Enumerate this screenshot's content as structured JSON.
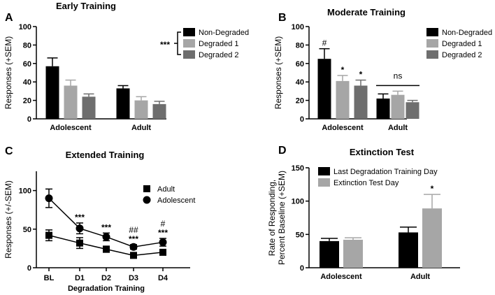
{
  "chart_data": [
    {
      "panel": "A",
      "type": "bar",
      "title": "Early Training",
      "ylabel": "Responses (+SEM)",
      "xlabel": "",
      "ylim": [
        0,
        100
      ],
      "yticks": [
        0,
        20,
        40,
        60,
        80,
        100
      ],
      "categories": [
        "Adolescent",
        "Adult"
      ],
      "series": [
        {
          "name": "Non-Degraded",
          "color": "#000000",
          "values": [
            57,
            33
          ],
          "errors": [
            9,
            3
          ]
        },
        {
          "name": "Degraded 1",
          "color": "#a6a6a6",
          "values": [
            36,
            20
          ],
          "errors": [
            6,
            4
          ]
        },
        {
          "name": "Degraded 2",
          "color": "#6e6e6e",
          "values": [
            24,
            16
          ],
          "errors": [
            3,
            3
          ]
        }
      ],
      "legend_position": "top-right",
      "annotations": [
        {
          "text": "***",
          "target": "legend"
        }
      ]
    },
    {
      "panel": "B",
      "type": "bar",
      "title": "Moderate Training",
      "ylabel": "Responses (+SEM)",
      "xlabel": "",
      "ylim": [
        0,
        100
      ],
      "yticks": [
        0,
        20,
        40,
        60,
        80,
        100
      ],
      "categories": [
        "Adolescent",
        "Adult"
      ],
      "series": [
        {
          "name": "Non-Degraded",
          "color": "#000000",
          "values": [
            65,
            22
          ],
          "errors": [
            11,
            5
          ]
        },
        {
          "name": "Degraded 1",
          "color": "#a6a6a6",
          "values": [
            41,
            26
          ],
          "errors": [
            6,
            4
          ]
        },
        {
          "name": "Degraded 2",
          "color": "#6e6e6e",
          "values": [
            36,
            18
          ],
          "errors": [
            6,
            2
          ]
        }
      ],
      "legend_position": "top-right",
      "annotations": [
        {
          "text": "#",
          "category": 0,
          "series": 0
        },
        {
          "text": "*",
          "category": 0,
          "series": 1
        },
        {
          "text": "*",
          "category": 0,
          "series": 2
        },
        {
          "text": "ns",
          "category": 1,
          "span": true
        }
      ]
    },
    {
      "panel": "C",
      "type": "line",
      "title": "Extended Training",
      "ylabel": "Responses (+/-SEM)",
      "xlabel": "Degradation Training",
      "ylim": [
        0,
        125
      ],
      "yticks": [
        0,
        50,
        100
      ],
      "x": [
        "BL",
        "D1",
        "D2",
        "D3",
        "D4"
      ],
      "series": [
        {
          "name": "Adult",
          "marker": "square",
          "values": [
            42,
            32,
            24,
            16,
            20
          ],
          "errors": [
            7,
            7,
            4,
            3,
            3
          ]
        },
        {
          "name": "Adolescent",
          "marker": "circle",
          "values": [
            90,
            51,
            40,
            27,
            33
          ],
          "errors": [
            12,
            7,
            5,
            3,
            5
          ]
        }
      ],
      "legend_position": "top-right",
      "annotations": [
        {
          "x": "D1",
          "lines": [
            "***"
          ]
        },
        {
          "x": "D2",
          "lines": [
            "***"
          ]
        },
        {
          "x": "D3",
          "lines": [
            "##",
            "***"
          ]
        },
        {
          "x": "D4",
          "lines": [
            "#",
            "***"
          ]
        }
      ]
    },
    {
      "panel": "D",
      "type": "bar",
      "title": "Extinction Test",
      "ylabel": "Rate of Responding,\nPercent Baseline (+SEM)",
      "ylabel_lines": [
        "Rate of Responding,",
        "Percent Baseline (+SEM)"
      ],
      "xlabel": "",
      "ylim": [
        0,
        150
      ],
      "yticks": [
        0,
        50,
        100,
        150
      ],
      "categories": [
        "Adolescent",
        "Adult"
      ],
      "series": [
        {
          "name": "Last Degradation Training Day",
          "color": "#000000",
          "values": [
            40,
            53
          ],
          "errors": [
            4,
            8
          ]
        },
        {
          "name": "Extinction Test Day",
          "color": "#a6a6a6",
          "values": [
            42,
            89
          ],
          "errors": [
            3,
            21
          ]
        }
      ],
      "legend_position": "top-left",
      "annotations": [
        {
          "text": "*",
          "category": 1,
          "series": 1
        }
      ]
    }
  ]
}
